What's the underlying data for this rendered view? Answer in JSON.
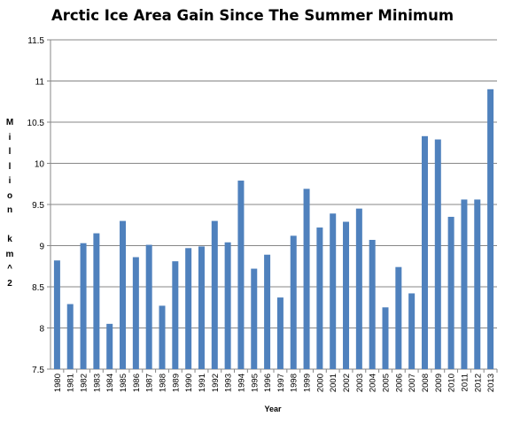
{
  "chart_data": {
    "type": "bar",
    "title": "Arctic Ice Area Gain Since The Summer Minimum",
    "xlabel": "Year",
    "ylabel": "Million km^2",
    "ylim": [
      7.5,
      11.5
    ],
    "yticks": [
      "7.5",
      "8",
      "8.5",
      "9",
      "9.5",
      "10",
      "10.5",
      "11",
      "11.5"
    ],
    "grid": true,
    "bar_color": "#4f81bd",
    "categories": [
      "1980",
      "1981",
      "1982",
      "1983",
      "1984",
      "1985",
      "1986",
      "1987",
      "1988",
      "1989",
      "1990",
      "1991",
      "1992",
      "1993",
      "1994",
      "1995",
      "1996",
      "1997",
      "1998",
      "1999",
      "2000",
      "2001",
      "2002",
      "2003",
      "2004",
      "2005",
      "2006",
      "2007",
      "2008",
      "2009",
      "2010",
      "2011",
      "2012",
      "2013"
    ],
    "values": [
      8.82,
      8.29,
      9.03,
      9.15,
      8.05,
      9.3,
      8.86,
      9.01,
      8.27,
      8.81,
      8.97,
      8.99,
      9.3,
      9.04,
      9.79,
      8.72,
      8.89,
      8.37,
      9.12,
      9.69,
      9.22,
      9.39,
      9.29,
      9.45,
      9.07,
      8.25,
      8.74,
      8.42,
      10.33,
      10.29,
      9.35,
      9.56,
      9.56,
      10.9
    ]
  }
}
